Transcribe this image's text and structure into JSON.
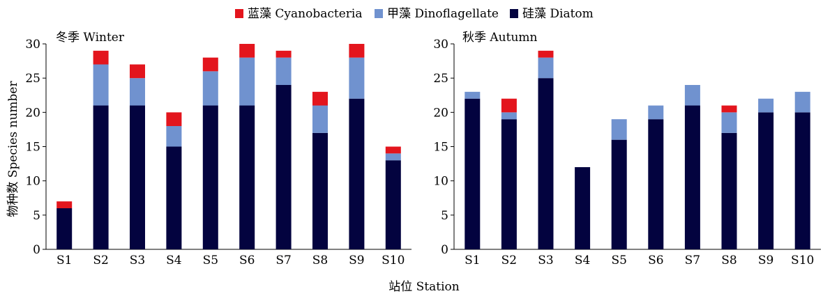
{
  "colors": {
    "cyanobacteria": "#e3151d",
    "dinoflagellate": "#7092cf",
    "diatom": "#03033f"
  },
  "legend": {
    "items": [
      {
        "label": "蓝藻 Cyanobacteria",
        "color_key": "cyanobacteria"
      },
      {
        "label": "甲藻 Dinoflagellate",
        "color_key": "dinoflagellate"
      },
      {
        "label": "硅藻 Diatom",
        "color_key": "diatom"
      }
    ]
  },
  "ylabel": "物种数 Species number",
  "xlabel": "站位 Station",
  "chart_data": [
    {
      "type": "bar",
      "stacked": true,
      "title": "冬季 Winter",
      "categories": [
        "S1",
        "S2",
        "S3",
        "S4",
        "S5",
        "S6",
        "S7",
        "S8",
        "S9",
        "S10"
      ],
      "ylim": [
        0,
        30
      ],
      "yticks": [
        0,
        5,
        10,
        15,
        20,
        25,
        30
      ],
      "series": [
        {
          "name": "硅藻 Diatom",
          "values": [
            6,
            21,
            21,
            15,
            21,
            21,
            24,
            17,
            22,
            13
          ]
        },
        {
          "name": "甲藻 Dinoflagellate",
          "values": [
            0,
            6,
            4,
            3,
            5,
            7,
            4,
            4,
            6,
            1
          ]
        },
        {
          "name": "蓝藻 Cyanobacteria",
          "values": [
            1,
            2,
            2,
            2,
            2,
            2,
            1,
            2,
            2,
            1
          ]
        }
      ]
    },
    {
      "type": "bar",
      "stacked": true,
      "title": "秋季 Autumn",
      "categories": [
        "S1",
        "S2",
        "S3",
        "S4",
        "S5",
        "S6",
        "S7",
        "S8",
        "S9",
        "S10"
      ],
      "ylim": [
        0,
        30
      ],
      "yticks": [
        0,
        5,
        10,
        15,
        20,
        25,
        30
      ],
      "series": [
        {
          "name": "硅藻 Diatom",
          "values": [
            22,
            19,
            25,
            12,
            16,
            19,
            21,
            17,
            20,
            20
          ]
        },
        {
          "name": "甲藻 Dinoflagellate",
          "values": [
            1,
            1,
            3,
            0,
            3,
            2,
            3,
            3,
            2,
            3
          ]
        },
        {
          "name": "蓝藻 Cyanobacteria",
          "values": [
            0,
            2,
            1,
            0,
            0,
            0,
            0,
            1,
            0,
            0
          ]
        }
      ]
    }
  ]
}
